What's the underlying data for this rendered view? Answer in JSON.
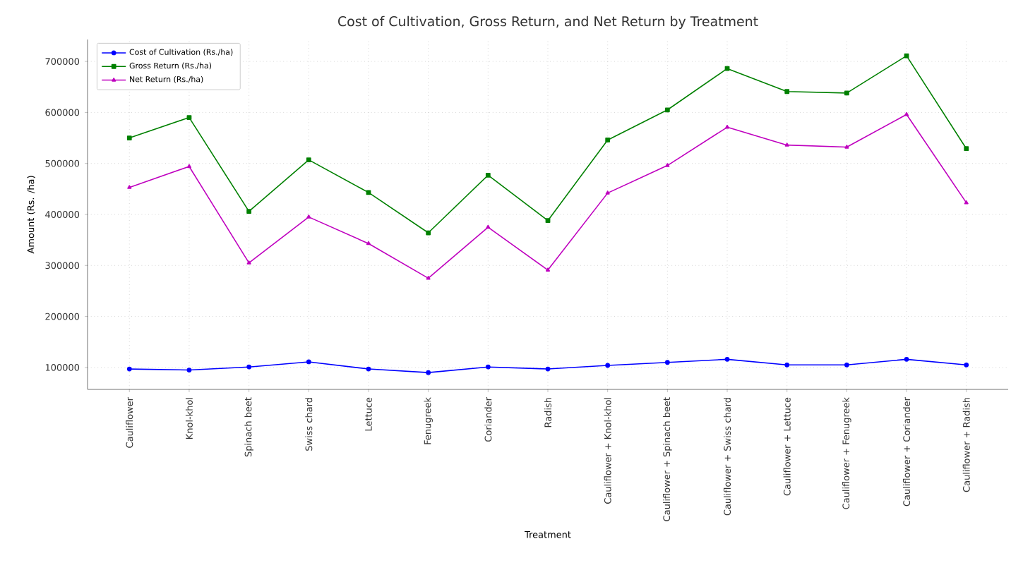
{
  "chart_data": {
    "type": "line",
    "title": "Cost of Cultivation, Gross Return, and Net Return by Treatment",
    "xlabel": "Treatment",
    "ylabel": "Amount (Rs. /ha)",
    "categories": [
      "Cauliflower",
      "Knol-khol",
      "Spinach beet",
      "Swiss chard",
      "Lettuce",
      "Fenugreek",
      "Coriander",
      "Radish",
      "Cauliflower + Knol-khol",
      "Cauliflower + Spinach beet",
      "Cauliflower + Swiss chard",
      "Cauliflower + Lettuce",
      "Cauliflower + Fenugreek",
      "Cauliflower + Coriander",
      "Cauliflower + Radish"
    ],
    "series": [
      {
        "name": "Cost of Cultivation (Rs./ha)",
        "color": "#0000ff",
        "marker": "circle",
        "values": [
          97000,
          95000,
          101000,
          111000,
          97000,
          90000,
          101000,
          97000,
          104000,
          110000,
          116000,
          105000,
          105000,
          116000,
          105000
        ]
      },
      {
        "name": "Gross Return (Rs./ha)",
        "color": "#008000",
        "marker": "square",
        "values": [
          550000,
          590000,
          406000,
          507000,
          443000,
          364000,
          477000,
          388000,
          546000,
          605000,
          686000,
          641000,
          638000,
          711000,
          529000
        ]
      },
      {
        "name": "Net Return (Rs./ha)",
        "color": "#bf00bf",
        "marker": "triangle",
        "values": [
          453000,
          494000,
          305000,
          395000,
          343000,
          275000,
          375000,
          291000,
          442000,
          496000,
          571000,
          536000,
          532000,
          596000,
          423000
        ]
      }
    ],
    "ylim": [
      57000,
      743000
    ],
    "yticks": [
      100000,
      200000,
      300000,
      400000,
      500000,
      600000,
      700000
    ],
    "grid": true,
    "legend": "top left",
    "line_style": "solid"
  }
}
